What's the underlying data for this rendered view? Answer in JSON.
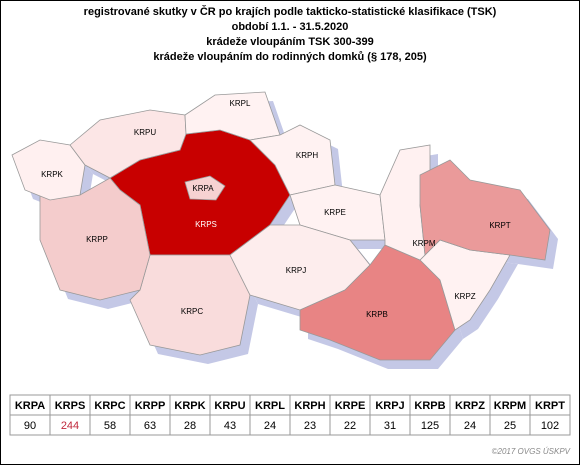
{
  "title": [
    "registrované skutky v ČR po krajích podle takticko-statistické klasifikace (TSK)",
    "období 1.1. - 31.5.2020",
    "krádeže vloupáním TSK 300-399",
    "krádeže vloupáním do rodinných domků (§ 178, 205)"
  ],
  "regions": [
    {
      "label": "KRPA",
      "value": 90,
      "color": "#f6d2d2"
    },
    {
      "label": "KRPS",
      "value": 244,
      "color": "#c80000",
      "value_color": "#c0283c"
    },
    {
      "label": "KRPC",
      "value": 58,
      "color": "#f9dcdc"
    },
    {
      "label": "KRPP",
      "value": 63,
      "color": "#f4cccc"
    },
    {
      "label": "KRPK",
      "value": 28,
      "color": "#fff0f0"
    },
    {
      "label": "KRPU",
      "value": 43,
      "color": "#fce6e6"
    },
    {
      "label": "KRPL",
      "value": 24,
      "color": "#fff2f2"
    },
    {
      "label": "KRPH",
      "value": 23,
      "color": "#fff2f2"
    },
    {
      "label": "KRPE",
      "value": 22,
      "color": "#fff2f2"
    },
    {
      "label": "KRPJ",
      "value": 31,
      "color": "#fdeded"
    },
    {
      "label": "KRPB",
      "value": 125,
      "color": "#e88484"
    },
    {
      "label": "KRPZ",
      "value": 24,
      "color": "#fff2f2"
    },
    {
      "label": "KRPM",
      "value": 25,
      "color": "#fff1f1"
    },
    {
      "label": "KRPT",
      "value": 102,
      "color": "#ea9a9a"
    }
  ],
  "footer": "©2017 OVGS ÚSKPV"
}
